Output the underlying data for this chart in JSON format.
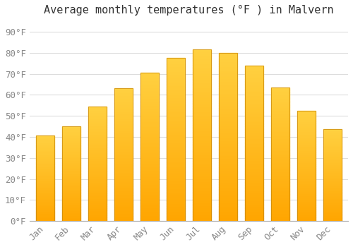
{
  "title": "Average monthly temperatures (°F ) in Malvern",
  "months": [
    "Jan",
    "Feb",
    "Mar",
    "Apr",
    "May",
    "Jun",
    "Jul",
    "Aug",
    "Sep",
    "Oct",
    "Nov",
    "Dec"
  ],
  "values": [
    40.5,
    45.0,
    54.5,
    63.0,
    70.5,
    77.5,
    81.5,
    80.0,
    74.0,
    63.5,
    52.5,
    43.5
  ],
  "bar_color_main": "#FFA500",
  "bar_color_light": "#FFD040",
  "bar_edge_color": "#C8860A",
  "background_color": "#ffffff",
  "grid_color": "#dddddd",
  "yticks": [
    0,
    10,
    20,
    30,
    40,
    50,
    60,
    70,
    80,
    90
  ],
  "ylim": [
    0,
    95
  ],
  "title_fontsize": 11,
  "tick_fontsize": 9,
  "font_family": "monospace"
}
